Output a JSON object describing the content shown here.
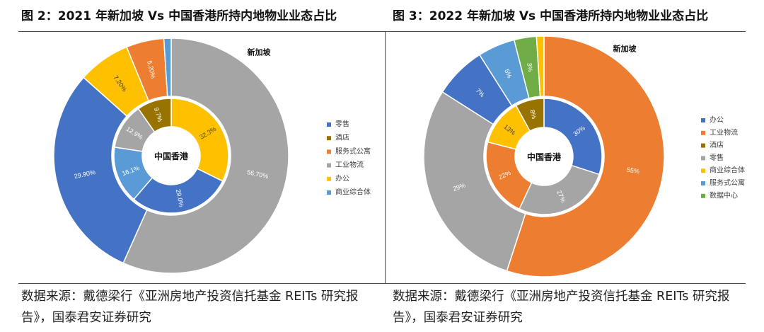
{
  "chart_data": [
    {
      "type": "pie",
      "title": "图 2：2021 年新加坡 Vs 中国香港所持内地物业业态占比",
      "legend": [
        {
          "name": "零售",
          "color": "#4472C4"
        },
        {
          "name": "酒店",
          "color": "#997300"
        },
        {
          "name": "服务式公寓",
          "color": "#ED7D31"
        },
        {
          "name": "工业物流",
          "color": "#A5A5A5"
        },
        {
          "name": "办公",
          "color": "#FFC000"
        },
        {
          "name": "商业综合体",
          "color": "#5B9BD5"
        }
      ],
      "outer": {
        "name": "新加坡",
        "slices": [
          {
            "category_index": 3,
            "value": 56.7,
            "label": "56.70%"
          },
          {
            "category_index": 0,
            "value": 29.9,
            "label": "29.90%"
          },
          {
            "category_index": 4,
            "value": 7.2,
            "label": "7.20%"
          },
          {
            "category_index": 2,
            "value": 5.2,
            "label": "5.20%"
          },
          {
            "category_index": 5,
            "value": 1.0
          }
        ]
      },
      "inner": {
        "name": "中国香港",
        "slices": [
          {
            "category_index": 4,
            "value": 32.3,
            "label": "32.3%"
          },
          {
            "category_index": 0,
            "value": 29.0,
            "label": "29.0%"
          },
          {
            "category_index": 5,
            "value": 16.1,
            "label": "16.1%"
          },
          {
            "category_index": 3,
            "value": 12.9,
            "label": "12.9%"
          },
          {
            "category_index": 1,
            "value": 9.7,
            "label": "9.7%"
          }
        ]
      },
      "source_lines": [
        "数据来源：戴德梁行《亚洲房地产投资信托基金 REITs 研究报",
        "告》，国泰君安证券研究"
      ]
    },
    {
      "type": "pie",
      "title": "图 3：2022 年新加坡 Vs 中国香港所持内地物业业态占比",
      "legend": [
        {
          "name": "办公",
          "color": "#4472C4"
        },
        {
          "name": "工业物流",
          "color": "#ED7D31"
        },
        {
          "name": "酒店",
          "color": "#997300"
        },
        {
          "name": "零售",
          "color": "#A5A5A5"
        },
        {
          "name": "商业综合体",
          "color": "#FFC000"
        },
        {
          "name": "服务式公寓",
          "color": "#5B9BD5"
        },
        {
          "name": "数据中心",
          "color": "#70AD47"
        }
      ],
      "outer": {
        "name": "新加坡",
        "slices": [
          {
            "category_index": 1,
            "value": 55,
            "label": "55%"
          },
          {
            "category_index": 3,
            "value": 29,
            "label": "29%"
          },
          {
            "category_index": 0,
            "value": 7,
            "label": "7%"
          },
          {
            "category_index": 5,
            "value": 5,
            "label": "5%"
          },
          {
            "category_index": 6,
            "value": 3,
            "label": "3%"
          },
          {
            "category_index": 4,
            "value": 1
          }
        ]
      },
      "inner": {
        "name": "中国香港",
        "slices": [
          {
            "category_index": 0,
            "value": 30,
            "label": "30%"
          },
          {
            "category_index": 3,
            "value": 27,
            "label": "27%"
          },
          {
            "category_index": 1,
            "value": 22,
            "label": "22%"
          },
          {
            "category_index": 4,
            "value": 13,
            "label": "13%"
          },
          {
            "category_index": 2,
            "value": 8,
            "label": "8%"
          }
        ]
      },
      "source_lines": [
        "数据来源：戴德梁行《亚洲房地产投资信托基金 REITs 研究报",
        "告》，国泰君安证券研究"
      ]
    }
  ]
}
